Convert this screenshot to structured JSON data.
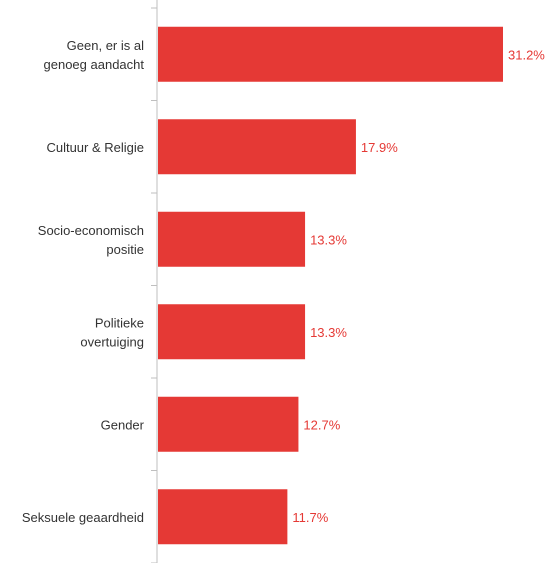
{
  "chart_data": {
    "type": "bar",
    "orientation": "horizontal",
    "categories": [
      [
        "Geen, er is al",
        "genoeg aandacht"
      ],
      [
        "Cultuur & Religie"
      ],
      [
        "Socio-economisch",
        "positie"
      ],
      [
        "Politieke",
        "overtuiging"
      ],
      [
        "Gender"
      ],
      [
        "Seksuele geaardheid"
      ]
    ],
    "values": [
      31.2,
      17.9,
      13.3,
      13.3,
      12.7,
      11.7
    ],
    "value_labels": [
      "31.2%",
      "17.9%",
      "13.3%",
      "13.3%",
      "12.7%",
      "11.7%"
    ],
    "title": "",
    "xlabel": "",
    "ylabel": "",
    "xlim": [
      0,
      32
    ],
    "grid": false,
    "legend": "none",
    "colors": {
      "bar": "#e53935",
      "value_label": "#e53935",
      "axis": "#bfbfbf",
      "category_label": "#333333"
    }
  }
}
